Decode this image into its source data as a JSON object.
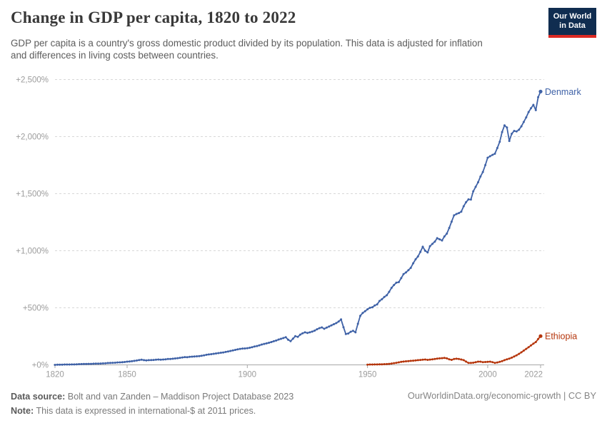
{
  "header": {
    "title": "Change in GDP per capita, 1820 to 2022",
    "subtitle_lines": [
      "GDP per capita is a country's gross domestic product divided by its population. This data is adjusted for inflation",
      "and differences in living costs between countries."
    ],
    "logo": {
      "line1": "Our World",
      "line2": "in Data"
    }
  },
  "colors": {
    "denmark": "#3f62a7",
    "ethiopia": "#b5350b",
    "grid": "#d8d8d8",
    "axis": "#a8a8a8",
    "tick_text": "#9c9c9c",
    "logo_bg": "#102d50",
    "logo_stripe": "#dc2a23",
    "title_text": "#383838",
    "subtitle_text": "#5c5c5c"
  },
  "chart_data": {
    "type": "line",
    "title": "Change in GDP per capita, 1820 to 2022",
    "xlabel": "",
    "ylabel": "",
    "x_range": [
      1820,
      2022
    ],
    "y_range": [
      0,
      2500
    ],
    "grid": "horizontal-dashed",
    "legend_position": "end-of-line-labels",
    "x_ticks": [
      {
        "value": 1820,
        "label": "1820"
      },
      {
        "value": 1850,
        "label": "1850"
      },
      {
        "value": 1900,
        "label": "1900"
      },
      {
        "value": 1950,
        "label": "1950"
      },
      {
        "value": 2000,
        "label": "2000"
      },
      {
        "value": 2022,
        "label": "2022"
      }
    ],
    "y_ticks": [
      {
        "value": 0,
        "label": "+0%"
      },
      {
        "value": 500,
        "label": "+500%"
      },
      {
        "value": 1000,
        "label": "+1,000%"
      },
      {
        "value": 1500,
        "label": "+1,500%"
      },
      {
        "value": 2000,
        "label": "+2,000%"
      },
      {
        "value": 2500,
        "label": "+2,500%"
      }
    ],
    "series": [
      {
        "name": "Denmark",
        "color_key": "denmark",
        "points": [
          [
            1820,
            0
          ],
          [
            1821,
            1
          ],
          [
            1822,
            2
          ],
          [
            1823,
            2
          ],
          [
            1824,
            3
          ],
          [
            1825,
            3
          ],
          [
            1826,
            3
          ],
          [
            1827,
            4
          ],
          [
            1828,
            4
          ],
          [
            1829,
            5
          ],
          [
            1830,
            6
          ],
          [
            1831,
            7
          ],
          [
            1832,
            8
          ],
          [
            1833,
            8
          ],
          [
            1834,
            9
          ],
          [
            1835,
            9
          ],
          [
            1836,
            10
          ],
          [
            1837,
            11
          ],
          [
            1838,
            11
          ],
          [
            1839,
            12
          ],
          [
            1840,
            13
          ],
          [
            1841,
            14
          ],
          [
            1842,
            16
          ],
          [
            1843,
            17
          ],
          [
            1844,
            18
          ],
          [
            1845,
            19
          ],
          [
            1846,
            21
          ],
          [
            1847,
            22
          ],
          [
            1848,
            23
          ],
          [
            1849,
            25
          ],
          [
            1850,
            28
          ],
          [
            1851,
            30
          ],
          [
            1852,
            32
          ],
          [
            1853,
            35
          ],
          [
            1854,
            38
          ],
          [
            1855,
            42
          ],
          [
            1856,
            45
          ],
          [
            1857,
            41
          ],
          [
            1858,
            39
          ],
          [
            1859,
            41
          ],
          [
            1860,
            42
          ],
          [
            1861,
            43
          ],
          [
            1862,
            45
          ],
          [
            1863,
            47
          ],
          [
            1864,
            45
          ],
          [
            1865,
            47
          ],
          [
            1866,
            49
          ],
          [
            1867,
            51
          ],
          [
            1868,
            52
          ],
          [
            1869,
            54
          ],
          [
            1870,
            56
          ],
          [
            1871,
            59
          ],
          [
            1872,
            62
          ],
          [
            1873,
            65
          ],
          [
            1874,
            68
          ],
          [
            1875,
            67
          ],
          [
            1876,
            70
          ],
          [
            1877,
            72
          ],
          [
            1878,
            74
          ],
          [
            1879,
            75
          ],
          [
            1880,
            77
          ],
          [
            1881,
            80
          ],
          [
            1882,
            84
          ],
          [
            1883,
            88
          ],
          [
            1884,
            91
          ],
          [
            1885,
            94
          ],
          [
            1886,
            97
          ],
          [
            1887,
            100
          ],
          [
            1888,
            103
          ],
          [
            1889,
            106
          ],
          [
            1890,
            109
          ],
          [
            1891,
            113
          ],
          [
            1892,
            117
          ],
          [
            1893,
            122
          ],
          [
            1894,
            127
          ],
          [
            1895,
            131
          ],
          [
            1896,
            136
          ],
          [
            1897,
            140
          ],
          [
            1898,
            143
          ],
          [
            1899,
            144
          ],
          [
            1900,
            146
          ],
          [
            1901,
            150
          ],
          [
            1902,
            155
          ],
          [
            1903,
            161
          ],
          [
            1904,
            165
          ],
          [
            1905,
            171
          ],
          [
            1906,
            178
          ],
          [
            1907,
            184
          ],
          [
            1908,
            188
          ],
          [
            1909,
            194
          ],
          [
            1910,
            200
          ],
          [
            1911,
            207
          ],
          [
            1912,
            213
          ],
          [
            1913,
            222
          ],
          [
            1914,
            228
          ],
          [
            1915,
            235
          ],
          [
            1916,
            242
          ],
          [
            1917,
            220
          ],
          [
            1918,
            208
          ],
          [
            1919,
            230
          ],
          [
            1920,
            252
          ],
          [
            1921,
            245
          ],
          [
            1922,
            265
          ],
          [
            1923,
            277
          ],
          [
            1924,
            285
          ],
          [
            1925,
            280
          ],
          [
            1926,
            285
          ],
          [
            1927,
            291
          ],
          [
            1928,
            300
          ],
          [
            1929,
            312
          ],
          [
            1930,
            322
          ],
          [
            1931,
            328
          ],
          [
            1932,
            316
          ],
          [
            1933,
            326
          ],
          [
            1934,
            336
          ],
          [
            1935,
            346
          ],
          [
            1936,
            356
          ],
          [
            1937,
            366
          ],
          [
            1938,
            380
          ],
          [
            1939,
            398
          ],
          [
            1940,
            330
          ],
          [
            1941,
            270
          ],
          [
            1942,
            275
          ],
          [
            1943,
            290
          ],
          [
            1944,
            298
          ],
          [
            1945,
            285
          ],
          [
            1946,
            360
          ],
          [
            1947,
            430
          ],
          [
            1948,
            455
          ],
          [
            1949,
            470
          ],
          [
            1950,
            487
          ],
          [
            1951,
            500
          ],
          [
            1952,
            505
          ],
          [
            1953,
            520
          ],
          [
            1954,
            530
          ],
          [
            1955,
            560
          ],
          [
            1956,
            575
          ],
          [
            1957,
            595
          ],
          [
            1958,
            610
          ],
          [
            1959,
            640
          ],
          [
            1960,
            675
          ],
          [
            1961,
            700
          ],
          [
            1962,
            720
          ],
          [
            1963,
            725
          ],
          [
            1964,
            760
          ],
          [
            1965,
            795
          ],
          [
            1966,
            810
          ],
          [
            1967,
            830
          ],
          [
            1968,
            850
          ],
          [
            1969,
            890
          ],
          [
            1970,
            925
          ],
          [
            1971,
            950
          ],
          [
            1972,
            990
          ],
          [
            1973,
            1035
          ],
          [
            1974,
            1000
          ],
          [
            1975,
            985
          ],
          [
            1976,
            1040
          ],
          [
            1977,
            1060
          ],
          [
            1978,
            1080
          ],
          [
            1979,
            1110
          ],
          [
            1980,
            1100
          ],
          [
            1981,
            1090
          ],
          [
            1982,
            1125
          ],
          [
            1983,
            1150
          ],
          [
            1984,
            1200
          ],
          [
            1985,
            1255
          ],
          [
            1986,
            1310
          ],
          [
            1987,
            1322
          ],
          [
            1988,
            1330
          ],
          [
            1989,
            1342
          ],
          [
            1990,
            1390
          ],
          [
            1991,
            1425
          ],
          [
            1992,
            1450
          ],
          [
            1993,
            1448
          ],
          [
            1994,
            1520
          ],
          [
            1995,
            1560
          ],
          [
            1996,
            1600
          ],
          [
            1997,
            1650
          ],
          [
            1998,
            1690
          ],
          [
            1999,
            1750
          ],
          [
            2000,
            1815
          ],
          [
            2001,
            1828
          ],
          [
            2002,
            1840
          ],
          [
            2003,
            1850
          ],
          [
            2004,
            1900
          ],
          [
            2005,
            1955
          ],
          [
            2006,
            2040
          ],
          [
            2007,
            2098
          ],
          [
            2008,
            2080
          ],
          [
            2009,
            1962
          ],
          [
            2010,
            2025
          ],
          [
            2011,
            2050
          ],
          [
            2012,
            2045
          ],
          [
            2013,
            2060
          ],
          [
            2014,
            2090
          ],
          [
            2015,
            2128
          ],
          [
            2016,
            2168
          ],
          [
            2017,
            2215
          ],
          [
            2018,
            2248
          ],
          [
            2019,
            2278
          ],
          [
            2020,
            2232
          ],
          [
            2021,
            2345
          ],
          [
            2022,
            2395
          ]
        ]
      },
      {
        "name": "Ethiopia",
        "color_key": "ethiopia",
        "points": [
          [
            1950,
            2
          ],
          [
            1951,
            3
          ],
          [
            1952,
            3
          ],
          [
            1953,
            4
          ],
          [
            1954,
            4
          ],
          [
            1955,
            5
          ],
          [
            1956,
            5
          ],
          [
            1957,
            6
          ],
          [
            1958,
            7
          ],
          [
            1959,
            9
          ],
          [
            1960,
            12
          ],
          [
            1961,
            15
          ],
          [
            1962,
            18
          ],
          [
            1963,
            22
          ],
          [
            1964,
            26
          ],
          [
            1965,
            29
          ],
          [
            1966,
            31
          ],
          [
            1967,
            33
          ],
          [
            1968,
            35
          ],
          [
            1969,
            37
          ],
          [
            1970,
            39
          ],
          [
            1971,
            41
          ],
          [
            1972,
            43
          ],
          [
            1973,
            45
          ],
          [
            1974,
            47
          ],
          [
            1975,
            44
          ],
          [
            1976,
            46
          ],
          [
            1977,
            49
          ],
          [
            1978,
            51
          ],
          [
            1979,
            55
          ],
          [
            1980,
            57
          ],
          [
            1981,
            59
          ],
          [
            1982,
            61
          ],
          [
            1983,
            57
          ],
          [
            1984,
            49
          ],
          [
            1985,
            44
          ],
          [
            1986,
            51
          ],
          [
            1987,
            54
          ],
          [
            1988,
            52
          ],
          [
            1989,
            47
          ],
          [
            1990,
            41
          ],
          [
            1991,
            29
          ],
          [
            1992,
            17
          ],
          [
            1993,
            17
          ],
          [
            1994,
            19
          ],
          [
            1995,
            23
          ],
          [
            1996,
            28
          ],
          [
            1997,
            28
          ],
          [
            1998,
            24
          ],
          [
            1999,
            25
          ],
          [
            2000,
            26
          ],
          [
            2001,
            28
          ],
          [
            2002,
            24
          ],
          [
            2003,
            17
          ],
          [
            2004,
            21
          ],
          [
            2005,
            27
          ],
          [
            2006,
            33
          ],
          [
            2007,
            41
          ],
          [
            2008,
            49
          ],
          [
            2009,
            55
          ],
          [
            2010,
            63
          ],
          [
            2011,
            74
          ],
          [
            2012,
            84
          ],
          [
            2013,
            96
          ],
          [
            2014,
            110
          ],
          [
            2015,
            125
          ],
          [
            2016,
            140
          ],
          [
            2017,
            155
          ],
          [
            2018,
            170
          ],
          [
            2019,
            186
          ],
          [
            2020,
            200
          ],
          [
            2021,
            226
          ],
          [
            2022,
            252
          ]
        ]
      }
    ]
  },
  "footer": {
    "datasource_label": "Data source:",
    "datasource_text": " Bolt and van Zanden – Maddison Project Database 2023",
    "note_label": "Note:",
    "note_text": " This data is expressed in international-$ at 2011 prices.",
    "right_text": "OurWorldinData.org/economic-growth | CC BY"
  }
}
